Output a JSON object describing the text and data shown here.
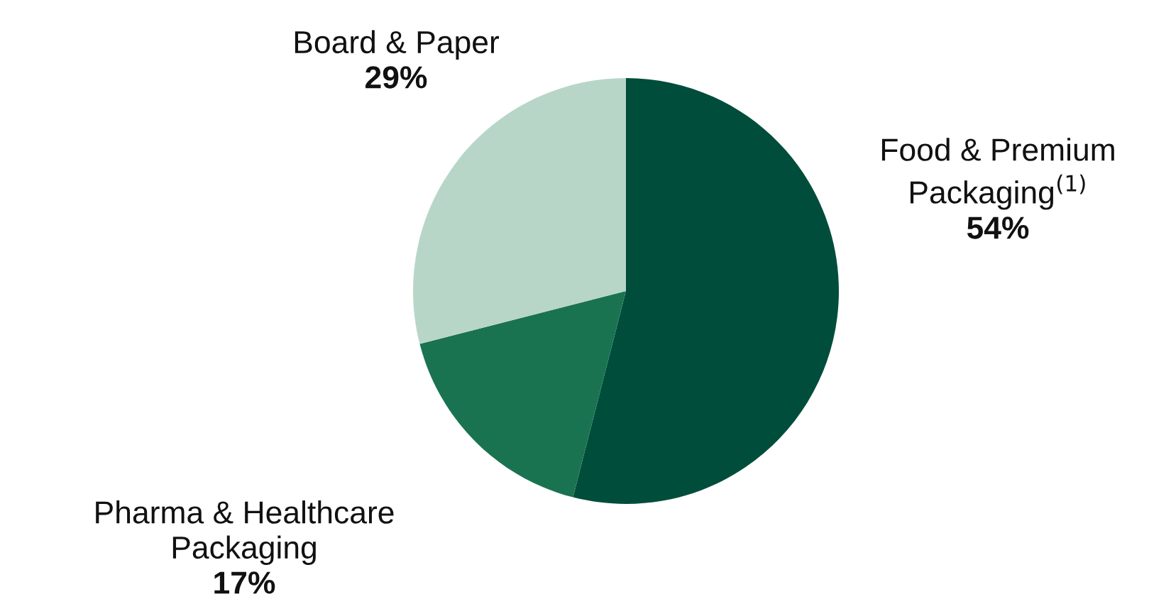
{
  "chart_data": {
    "type": "pie",
    "categories": [
      "Food & Premium\nPackaging$^{(1)}$",
      "Pharma & Healthcare\nPackaging",
      "Board & Paper"
    ],
    "values": [
      54,
      17,
      29
    ],
    "value_labels": [
      "54%",
      "17%",
      "29%"
    ],
    "colors": [
      "#004d3b",
      "#1a7350",
      "#b8d6c8"
    ]
  }
}
